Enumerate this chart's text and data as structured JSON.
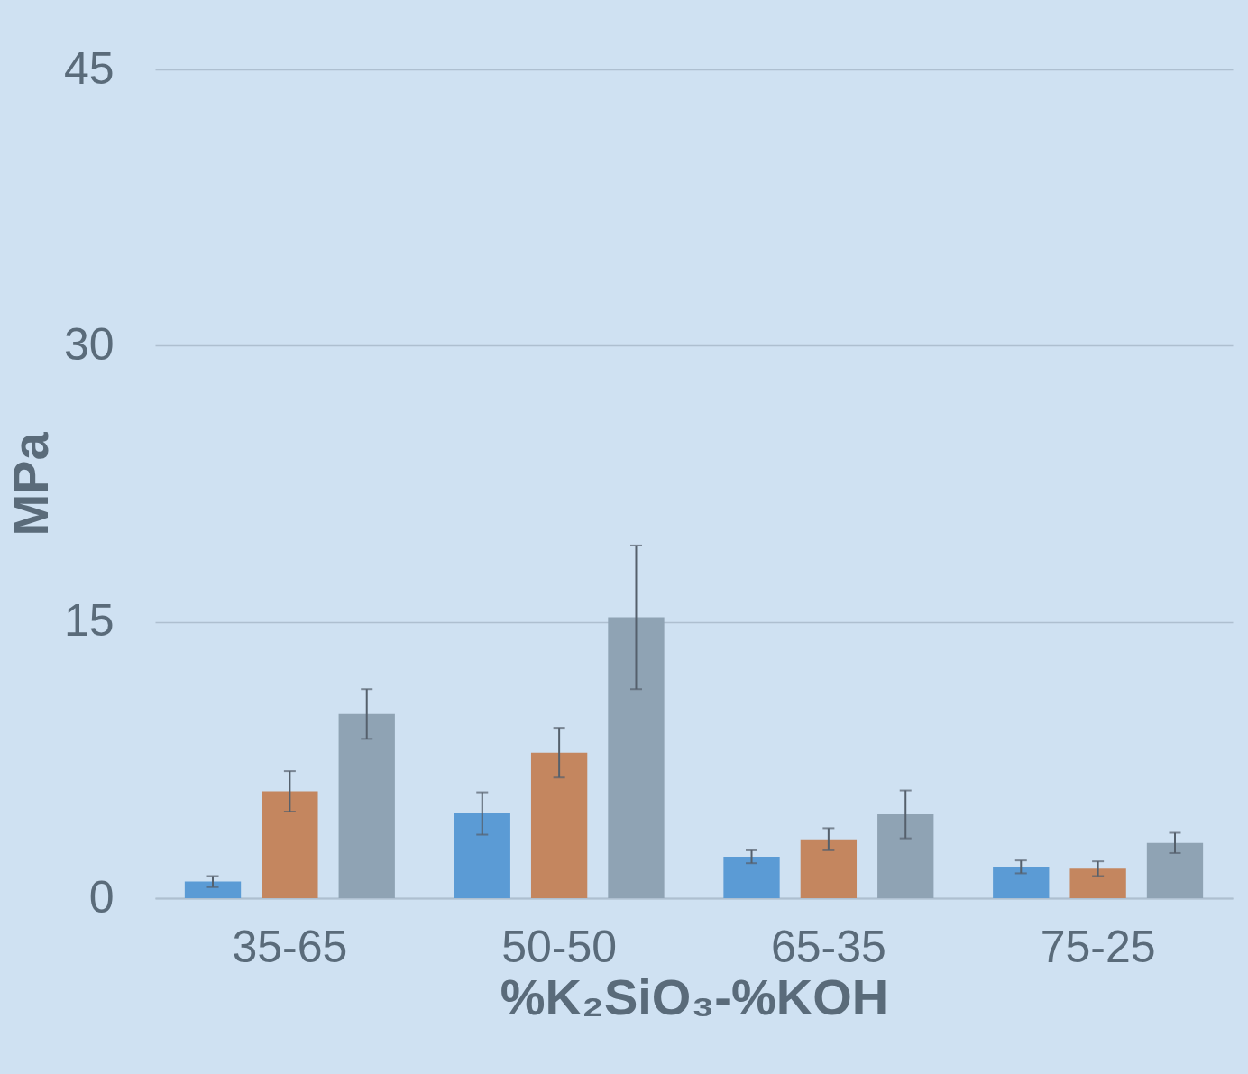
{
  "chart_data": {
    "type": "bar",
    "xlabel": "%K₂SiO₃-%KOH",
    "ylabel": "MPa",
    "categories": [
      "35-65",
      "50-50",
      "65-35",
      "75-25"
    ],
    "series": [
      {
        "color": "#5b9bd5",
        "values": [
          0.9,
          4.6,
          2.25,
          1.7
        ],
        "errors": [
          0.3,
          1.15,
          0.35,
          0.35
        ]
      },
      {
        "color": "#c4865f",
        "values": [
          5.8,
          7.9,
          3.2,
          1.6
        ],
        "errors": [
          1.1,
          1.35,
          0.6,
          0.4
        ]
      },
      {
        "color": "#8fa3b4",
        "values": [
          10.0,
          15.25,
          4.55,
          3.0
        ],
        "errors": [
          1.35,
          3.9,
          1.3,
          0.55
        ]
      }
    ],
    "ylim": [
      0,
      45
    ],
    "yticks": [
      0,
      15,
      30,
      45
    ],
    "grid": "y",
    "legend": false
  }
}
